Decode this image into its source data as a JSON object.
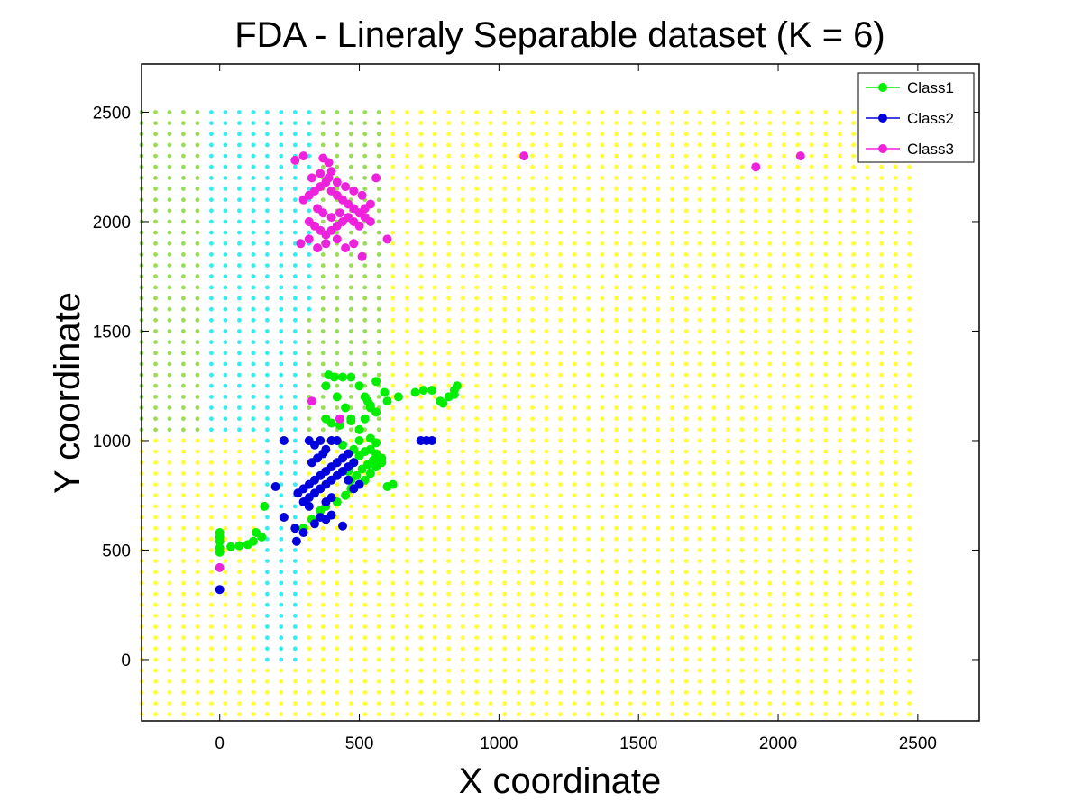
{
  "chart_data": {
    "type": "scatter",
    "title": "FDA - Lineraly Separable dataset (K = 6)",
    "xlabel": "X coordinate",
    "ylabel": "Y coordinate",
    "xlim": [
      -280,
      2720
    ],
    "ylim": [
      -280,
      2720
    ],
    "xticks": [
      0,
      500,
      1000,
      1500,
      2000,
      2500
    ],
    "yticks": [
      0,
      500,
      1000,
      1500,
      2000,
      2500
    ],
    "grid": false,
    "legend_position": "top-right",
    "background_grid": {
      "description": "decision region grid",
      "x_range": [
        -280,
        2500
      ],
      "y_range": [
        -250,
        2500
      ],
      "step": 50,
      "region_colors": {
        "yellow": "#ffff33",
        "olive": "#99dd55",
        "cyan": "#33eeee"
      }
    },
    "series": [
      {
        "name": "Class1",
        "color": "#00ee00",
        "points": [
          [
            0,
            580
          ],
          [
            0,
            560
          ],
          [
            0,
            540
          ],
          [
            0,
            510
          ],
          [
            0,
            490
          ],
          [
            40,
            515
          ],
          [
            70,
            520
          ],
          [
            100,
            525
          ],
          [
            120,
            540
          ],
          [
            130,
            580
          ],
          [
            150,
            560
          ],
          [
            160,
            700
          ],
          [
            300,
            600
          ],
          [
            330,
            640
          ],
          [
            360,
            680
          ],
          [
            380,
            700
          ],
          [
            420,
            720
          ],
          [
            450,
            750
          ],
          [
            470,
            780
          ],
          [
            500,
            800
          ],
          [
            520,
            820
          ],
          [
            540,
            850
          ],
          [
            560,
            880
          ],
          [
            580,
            900
          ],
          [
            600,
            790
          ],
          [
            620,
            800
          ],
          [
            460,
            860
          ],
          [
            480,
            900
          ],
          [
            500,
            930
          ],
          [
            520,
            950
          ],
          [
            540,
            960
          ],
          [
            560,
            940
          ],
          [
            580,
            920
          ],
          [
            470,
            820
          ],
          [
            490,
            840
          ],
          [
            510,
            870
          ],
          [
            530,
            890
          ],
          [
            550,
            910
          ],
          [
            390,
            1300
          ],
          [
            410,
            1290
          ],
          [
            440,
            1290
          ],
          [
            470,
            1290
          ],
          [
            500,
            1250
          ],
          [
            520,
            1200
          ],
          [
            530,
            1180
          ],
          [
            540,
            1150
          ],
          [
            560,
            1270
          ],
          [
            590,
            1220
          ],
          [
            640,
            1200
          ],
          [
            380,
            1250
          ],
          [
            420,
            1200
          ],
          [
            450,
            1150
          ],
          [
            470,
            1100
          ],
          [
            500,
            1050
          ],
          [
            520,
            1100
          ],
          [
            540,
            1160
          ],
          [
            560,
            1130
          ],
          [
            600,
            1180
          ],
          [
            700,
            1220
          ],
          [
            730,
            1230
          ],
          [
            760,
            1230
          ],
          [
            790,
            1180
          ],
          [
            800,
            1170
          ],
          [
            820,
            1200
          ],
          [
            840,
            1230
          ],
          [
            850,
            1250
          ],
          [
            840,
            1210
          ],
          [
            400,
            1000
          ],
          [
            440,
            980
          ],
          [
            480,
            960
          ],
          [
            500,
            1000
          ],
          [
            540,
            1010
          ],
          [
            560,
            990
          ],
          [
            430,
            1070
          ],
          [
            470,
            1090
          ],
          [
            400,
            1080
          ],
          [
            380,
            1100
          ]
        ]
      },
      {
        "name": "Class2",
        "color": "#0000dd",
        "points": [
          [
            0,
            320
          ],
          [
            230,
            1000
          ],
          [
            200,
            790
          ],
          [
            230,
            650
          ],
          [
            270,
            600
          ],
          [
            275,
            540
          ],
          [
            300,
            580
          ],
          [
            320,
            700
          ],
          [
            340,
            620
          ],
          [
            360,
            650
          ],
          [
            380,
            640
          ],
          [
            400,
            660
          ],
          [
            440,
            610
          ],
          [
            280,
            760
          ],
          [
            300,
            780
          ],
          [
            320,
            800
          ],
          [
            340,
            820
          ],
          [
            360,
            840
          ],
          [
            380,
            860
          ],
          [
            400,
            880
          ],
          [
            420,
            900
          ],
          [
            440,
            920
          ],
          [
            460,
            880
          ],
          [
            330,
            900
          ],
          [
            350,
            920
          ],
          [
            370,
            940
          ],
          [
            300,
            720
          ],
          [
            320,
            740
          ],
          [
            340,
            760
          ],
          [
            360,
            780
          ],
          [
            380,
            800
          ],
          [
            400,
            820
          ],
          [
            420,
            840
          ],
          [
            440,
            860
          ],
          [
            460,
            820
          ],
          [
            480,
            780
          ],
          [
            500,
            800
          ],
          [
            380,
            720
          ],
          [
            400,
            740
          ],
          [
            320,
            1000
          ],
          [
            360,
            1000
          ],
          [
            400,
            1000
          ],
          [
            420,
            1000
          ],
          [
            340,
            980
          ],
          [
            380,
            960
          ],
          [
            720,
            1000
          ],
          [
            740,
            1000
          ],
          [
            760,
            1000
          ],
          [
            480,
            900
          ],
          [
            460,
            940
          ]
        ]
      },
      {
        "name": "Class3",
        "color": "#ee22dd",
        "points": [
          [
            0,
            420
          ],
          [
            330,
            1180
          ],
          [
            430,
            1100
          ],
          [
            1090,
            2300
          ],
          [
            1920,
            2250
          ],
          [
            2080,
            2300
          ],
          [
            270,
            2280
          ],
          [
            300,
            2300
          ],
          [
            370,
            2290
          ],
          [
            390,
            2270
          ],
          [
            400,
            2230
          ],
          [
            560,
            2200
          ],
          [
            300,
            2100
          ],
          [
            320,
            2120
          ],
          [
            340,
            2140
          ],
          [
            360,
            2160
          ],
          [
            380,
            2180
          ],
          [
            400,
            2140
          ],
          [
            420,
            2120
          ],
          [
            440,
            2100
          ],
          [
            460,
            2080
          ],
          [
            480,
            2060
          ],
          [
            500,
            2040
          ],
          [
            520,
            2020
          ],
          [
            540,
            2000
          ],
          [
            320,
            2000
          ],
          [
            340,
            1980
          ],
          [
            360,
            1960
          ],
          [
            380,
            1940
          ],
          [
            400,
            1960
          ],
          [
            420,
            1980
          ],
          [
            440,
            2000
          ],
          [
            460,
            2020
          ],
          [
            480,
            2000
          ],
          [
            500,
            1980
          ],
          [
            520,
            2060
          ],
          [
            540,
            2080
          ],
          [
            290,
            1900
          ],
          [
            320,
            1920
          ],
          [
            350,
            1880
          ],
          [
            380,
            1900
          ],
          [
            420,
            1920
          ],
          [
            450,
            1880
          ],
          [
            480,
            1900
          ],
          [
            510,
            1840
          ],
          [
            600,
            1920
          ],
          [
            330,
            2200
          ],
          [
            360,
            2220
          ],
          [
            390,
            2200
          ],
          [
            420,
            2180
          ],
          [
            450,
            2160
          ],
          [
            480,
            2140
          ],
          [
            510,
            2120
          ],
          [
            350,
            2060
          ],
          [
            370,
            2040
          ],
          [
            400,
            2020
          ],
          [
            430,
            2040
          ]
        ]
      }
    ]
  }
}
